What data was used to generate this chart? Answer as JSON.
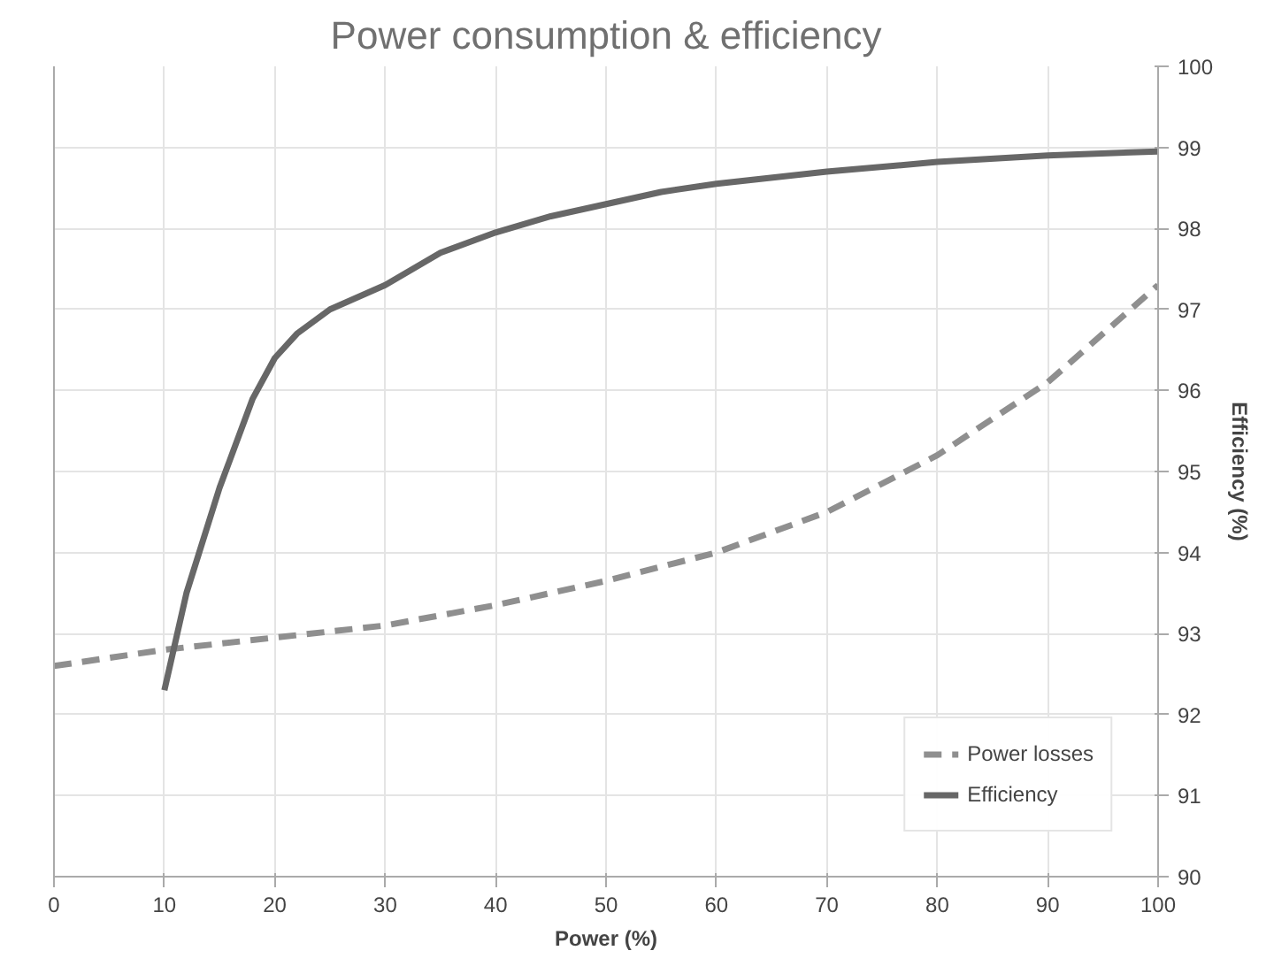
{
  "chart_data": {
    "type": "line",
    "title": "Power consumption & efficiency",
    "xlabel": "Power (%)",
    "y2label": "Efficiency (%)",
    "xlim": [
      0,
      100
    ],
    "xticks": [
      0,
      10,
      20,
      30,
      40,
      50,
      60,
      70,
      80,
      90,
      100
    ],
    "y2lim": [
      90,
      100
    ],
    "y2ticks": [
      90,
      91,
      92,
      93,
      94,
      95,
      96,
      97,
      98,
      99,
      100
    ],
    "grid": true,
    "legend": "bottom right",
    "series": [
      {
        "name": "Power losses",
        "color": "#8f8f8f",
        "axis": "y2",
        "line_style": "dashed",
        "x": [
          0,
          10,
          20,
          30,
          40,
          50,
          60,
          70,
          80,
          90,
          100
        ],
        "values": [
          92.6,
          92.8,
          92.95,
          93.1,
          93.35,
          93.65,
          94.0,
          94.5,
          95.2,
          96.1,
          97.3
        ]
      },
      {
        "name": "Efficiency",
        "color": "#676767",
        "axis": "y2",
        "line_style": "solid",
        "x": [
          10,
          12,
          15,
          18,
          20,
          22,
          25,
          30,
          35,
          40,
          45,
          50,
          55,
          60,
          70,
          80,
          90,
          100
        ],
        "values": [
          92.3,
          93.5,
          94.8,
          95.9,
          96.4,
          96.7,
          97.0,
          97.3,
          97.7,
          97.95,
          98.15,
          98.3,
          98.45,
          98.55,
          98.7,
          98.82,
          98.9,
          98.95
        ]
      }
    ]
  }
}
